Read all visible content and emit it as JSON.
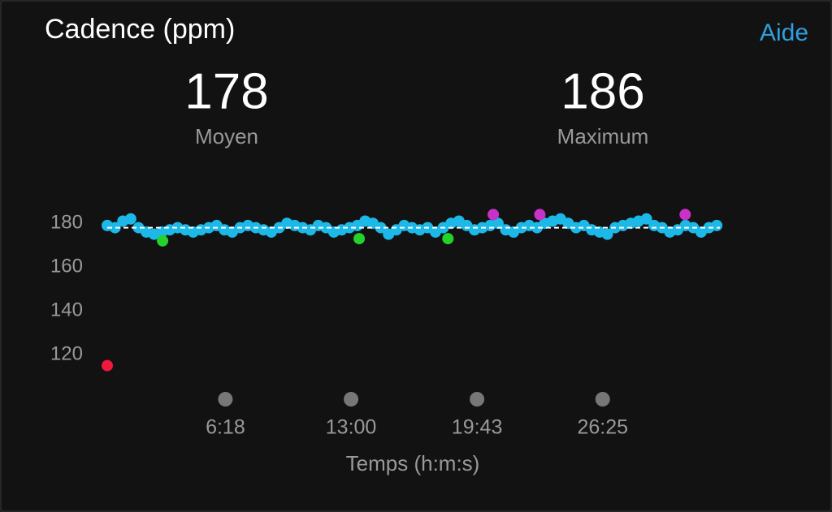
{
  "header": {
    "title": "Cadence (ppm)",
    "help": "Aide"
  },
  "stats": [
    {
      "value": 178,
      "label": "Moyen"
    },
    {
      "value": 186,
      "label": "Maximum"
    }
  ],
  "chart_data": {
    "type": "scatter",
    "x_label": "Temps (h:m:s)",
    "xlim": [
      0,
      1960
    ],
    "ylim": [
      113,
      186
    ],
    "xticks": [
      {
        "value": 378,
        "label": "6:18"
      },
      {
        "value": 780,
        "label": "13:00"
      },
      {
        "value": 1183,
        "label": "19:43"
      },
      {
        "value": 1585,
        "label": "26:25"
      }
    ],
    "yticks": [
      120,
      140,
      160,
      180
    ],
    "average": 178,
    "series": [
      {
        "color": "#1cb8e8",
        "x": [
          0,
          25,
          50,
          75,
          100,
          125,
          150,
          175,
          200,
          225,
          250,
          275,
          300,
          325,
          350,
          375,
          400,
          425,
          450,
          475,
          500,
          525,
          550,
          575,
          600,
          625,
          650,
          675,
          700,
          725,
          750,
          775,
          800,
          825,
          850,
          875,
          900,
          925,
          950,
          975,
          1000,
          1025,
          1050,
          1075,
          1100,
          1125,
          1150,
          1175,
          1200,
          1225,
          1250,
          1275,
          1300,
          1325,
          1350,
          1375,
          1400,
          1425,
          1450,
          1475,
          1500,
          1525,
          1550,
          1575,
          1600,
          1625,
          1650,
          1675,
          1700,
          1725,
          1750,
          1775,
          1800,
          1825,
          1850,
          1875,
          1900,
          1925,
          1950
        ],
        "values": [
          179,
          178,
          181,
          182,
          178,
          176,
          175,
          176,
          177,
          178,
          177,
          176,
          177,
          178,
          179,
          177,
          176,
          178,
          179,
          178,
          177,
          176,
          178,
          180,
          179,
          178,
          177,
          179,
          178,
          176,
          177,
          178,
          179,
          181,
          180,
          178,
          175,
          177,
          179,
          178,
          177,
          178,
          176,
          178,
          180,
          181,
          179,
          177,
          178,
          179,
          180,
          177,
          176,
          178,
          179,
          178,
          180,
          181,
          182,
          180,
          178,
          179,
          177,
          176,
          175,
          178,
          179,
          180,
          181,
          182,
          179,
          178,
          176,
          177,
          179,
          178,
          176,
          178,
          179
        ]
      },
      {
        "color": "#22d32a",
        "x": [
          177,
          806,
          1090
        ],
        "values": [
          172,
          173,
          173
        ]
      },
      {
        "color": "#c832c8",
        "x": [
          1235,
          1384,
          1849
        ],
        "values": [
          184,
          184,
          184
        ]
      },
      {
        "color": "#f0193c",
        "x": [
          0
        ],
        "values": [
          115
        ]
      }
    ]
  }
}
